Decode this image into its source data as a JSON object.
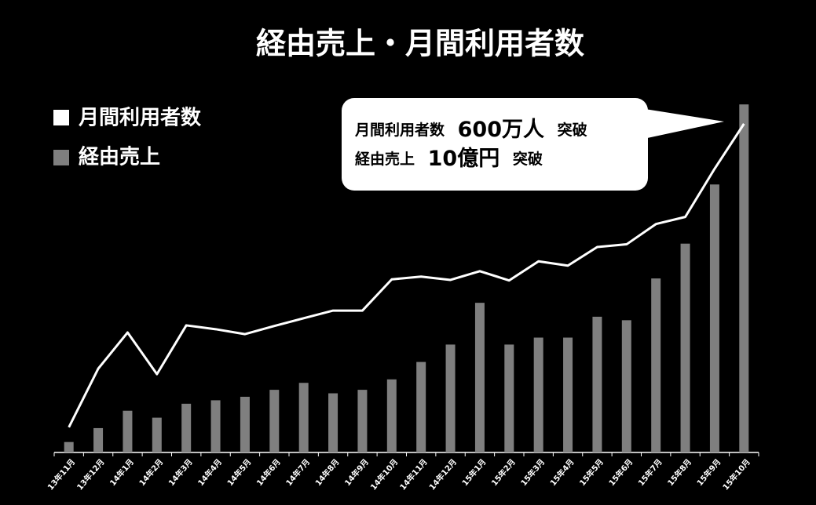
{
  "chart_data": {
    "type": "bar_line",
    "title": "経由売上・月間利用者数",
    "categories": [
      "13年11月",
      "13年12月",
      "14年1月",
      "14年2月",
      "14年3月",
      "14年4月",
      "14年5月",
      "14年6月",
      "14年7月",
      "14年8月",
      "14年9月",
      "14年10月",
      "14年11月",
      "14年12月",
      "15年1月",
      "15年2月",
      "15年3月",
      "15年4月",
      "15年5月",
      "15年6月",
      "15年7月",
      "15年8月",
      "15年9月",
      "15年10月"
    ],
    "series": [
      {
        "name": "月間利用者数",
        "type": "line",
        "axis": "y2",
        "color": "#ffffff",
        "values": [
          46,
          153,
          219,
          143,
          232,
          225,
          216,
          231,
          245,
          259,
          259,
          316,
          321,
          315,
          331,
          314,
          349,
          341,
          375,
          380,
          417,
          430,
          518,
          600
        ]
      },
      {
        "name": "経由売上",
        "type": "bar",
        "color": "#7f7f7f",
        "values": [
          0.3,
          0.7,
          1.2,
          1.0,
          1.4,
          1.5,
          1.6,
          1.8,
          2.0,
          1.7,
          1.8,
          2.1,
          2.6,
          3.1,
          4.3,
          3.1,
          3.3,
          3.3,
          3.9,
          3.8,
          5.0,
          6.0,
          7.7,
          10.0
        ]
      }
    ],
    "ylim": [
      0,
      13
    ],
    "y2lim": [
      0,
      826
    ],
    "annotation": [
      [
        "月間利用者数",
        "600万人",
        "突破"
      ],
      [
        "経由売上",
        "10億円",
        "突破"
      ]
    ]
  }
}
